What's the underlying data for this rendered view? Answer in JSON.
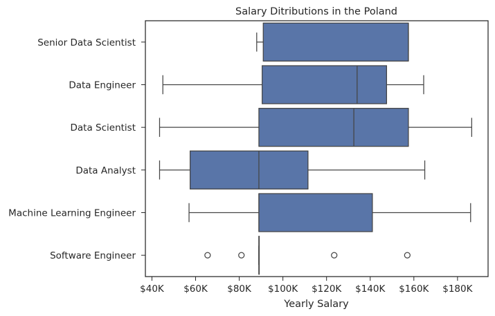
{
  "chart_data": {
    "type": "boxplot",
    "orientation": "horizontal",
    "title": "Salary Ditributions in the Poland",
    "xlabel": "Yearly Salary",
    "ylabel": "",
    "xlim": [
      37000,
      194000
    ],
    "xticks": [
      40000,
      60000,
      80000,
      100000,
      120000,
      140000,
      160000,
      180000
    ],
    "xtick_labels": [
      "$40K",
      "$60K",
      "$80K",
      "$100K",
      "$120K",
      "$140K",
      "$160K",
      "$180K"
    ],
    "box_color": "#5975a8",
    "line_color": "#444444",
    "categories": [
      "Senior Data Scientist",
      "Data Engineer",
      "Data Scientist",
      "Data Analyst",
      "Machine Learning Engineer",
      "Software Engineer"
    ],
    "boxes": [
      {
        "label": "Senior Data Scientist",
        "whisker_low": 88000,
        "q1": 91000,
        "median": 157500,
        "q3": 157500,
        "whisker_high": 157500,
        "outliers": []
      },
      {
        "label": "Data Engineer",
        "whisker_low": 45000,
        "q1": 90500,
        "median": 134000,
        "q3": 147500,
        "whisker_high": 164500,
        "outliers": []
      },
      {
        "label": "Data Scientist",
        "whisker_low": 43500,
        "q1": 89000,
        "median": 132500,
        "q3": 157500,
        "whisker_high": 186500,
        "outliers": []
      },
      {
        "label": "Data Analyst",
        "whisker_low": 43500,
        "q1": 57500,
        "median": 89000,
        "q3": 111500,
        "whisker_high": 165000,
        "outliers": []
      },
      {
        "label": "Machine Learning Engineer",
        "whisker_low": 57000,
        "q1": 89000,
        "median": 89000,
        "q3": 141000,
        "whisker_high": 186000,
        "outliers": []
      },
      {
        "label": "Software Engineer",
        "whisker_low": 89000,
        "q1": 89000,
        "median": 89000,
        "q3": 89000,
        "whisker_high": 89000,
        "outliers": [
          65500,
          81000,
          123500,
          157000
        ]
      }
    ]
  }
}
